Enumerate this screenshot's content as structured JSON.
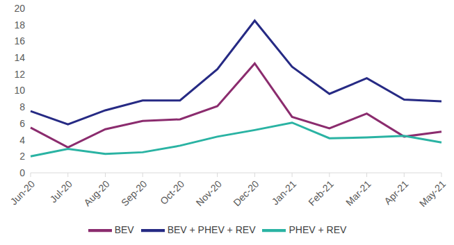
{
  "chart_data": {
    "type": "line",
    "categories": [
      "Jun-20",
      "Jul-20",
      "Aug-20",
      "Sep-20",
      "Oct-20",
      "Nov-20",
      "Dec-20",
      "Jan-21",
      "Feb-21",
      "Mar-21",
      "Apr-21",
      "May-21"
    ],
    "series": [
      {
        "name": "BEV + PHEV + REV",
        "color": "#262a84",
        "values": [
          7.5,
          5.9,
          7.6,
          8.8,
          8.8,
          12.6,
          18.5,
          12.9,
          9.6,
          11.5,
          8.9,
          8.7
        ]
      },
      {
        "name": "BEV",
        "color": "#8b2c6e",
        "values": [
          5.5,
          3.1,
          5.3,
          6.3,
          6.5,
          8.1,
          13.3,
          6.8,
          5.4,
          7.2,
          4.4,
          5.0
        ]
      },
      {
        "name": "PHEV + REV",
        "color": "#2ab3a3",
        "values": [
          2.0,
          2.9,
          2.3,
          2.5,
          3.3,
          4.4,
          5.2,
          6.1,
          4.2,
          4.3,
          4.5,
          3.7
        ]
      }
    ],
    "ylim": [
      0,
      20
    ],
    "yticks": [
      0,
      2,
      4,
      6,
      8,
      10,
      12,
      14,
      16,
      18,
      20
    ],
    "grid": false,
    "legend": "bottom"
  }
}
